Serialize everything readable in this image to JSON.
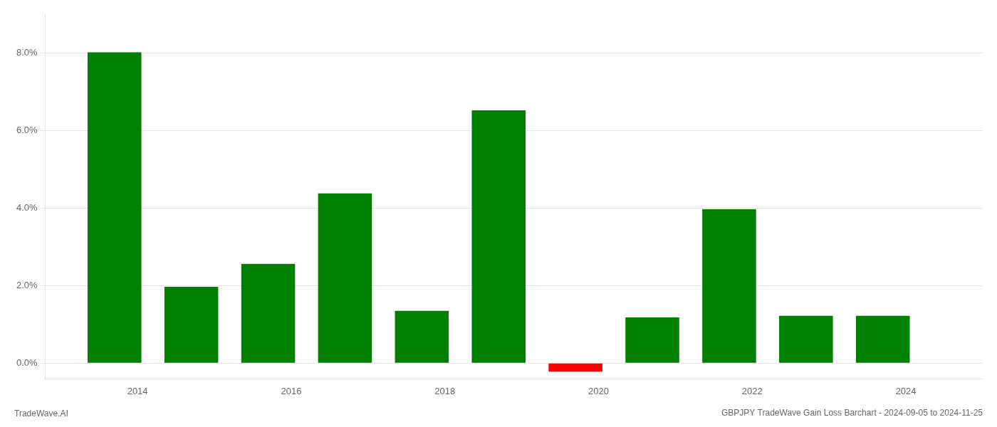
{
  "chart_data": {
    "type": "bar",
    "title": "GBPJPY TradeWave Gain Loss Barchart - 2024-09-05 to 2024-11-25",
    "annotations": [
      "TradeWave.AI"
    ],
    "x": [
      2013.7,
      2014.7,
      2015.7,
      2016.7,
      2017.7,
      2018.7,
      2019.7,
      2020.7,
      2021.7,
      2022.7,
      2023.7
    ],
    "values": [
      8.02,
      1.97,
      2.56,
      4.38,
      1.35,
      6.52,
      -0.22,
      1.18,
      3.97,
      1.22,
      1.22
    ],
    "colors": [
      "#008000",
      "#008000",
      "#008000",
      "#008000",
      "#008000",
      "#008000",
      "#ff0000",
      "#008000",
      "#008000",
      "#008000",
      "#008000"
    ],
    "xlim": [
      2012.8,
      2025.0
    ],
    "xticks": [
      2014,
      2016,
      2018,
      2020,
      2022,
      2024
    ],
    "ylim": [
      -0.4,
      9.0
    ],
    "yticks": [
      {
        "value": 0.0,
        "label": "0.0%"
      },
      {
        "value": 2.0,
        "label": "2.0%"
      },
      {
        "value": 4.0,
        "label": "4.0%"
      },
      {
        "value": 6.0,
        "label": "6.0%"
      },
      {
        "value": 8.0,
        "label": "8.0%"
      }
    ],
    "grid": true
  }
}
